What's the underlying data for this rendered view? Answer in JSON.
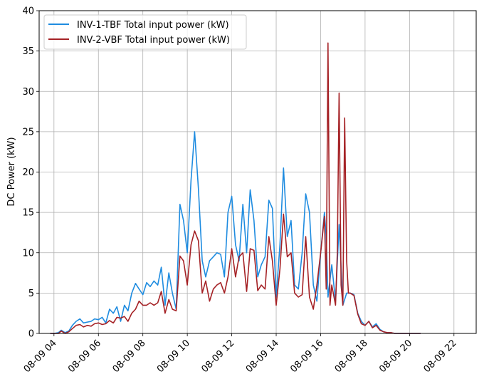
{
  "chart_data": {
    "type": "line",
    "title": "",
    "xlabel": "",
    "ylabel": "DC Power (kW)",
    "ylim": [
      0,
      40
    ],
    "xlim": [
      "08-09 03:20",
      "08-09 23:00"
    ],
    "yticks": [
      0,
      5,
      10,
      15,
      20,
      25,
      30,
      35,
      40
    ],
    "xticks": [
      "08-09 04",
      "08-09 06",
      "08-09 08",
      "08-09 10",
      "08-09 12",
      "08-09 14",
      "08-09 16",
      "08-09 18",
      "08-09 20",
      "08-09 22"
    ],
    "xtick_hours": [
      4,
      6,
      8,
      10,
      12,
      14,
      16,
      18,
      20,
      22
    ],
    "grid": true,
    "legend_position": "top-left",
    "series": [
      {
        "name": "INV-1-TBF Total input power (kW)",
        "color": "#1f8ce0",
        "x_hours": [
          3.83,
          4.0,
          4.2,
          4.33,
          4.5,
          4.67,
          4.83,
          5.0,
          5.17,
          5.33,
          5.5,
          5.67,
          5.83,
          6.0,
          6.17,
          6.33,
          6.5,
          6.67,
          6.83,
          7.0,
          7.17,
          7.33,
          7.5,
          7.67,
          7.83,
          8.0,
          8.17,
          8.33,
          8.5,
          8.67,
          8.83,
          9.0,
          9.17,
          9.33,
          9.5,
          9.67,
          9.83,
          10.0,
          10.17,
          10.33,
          10.5,
          10.67,
          10.83,
          11.0,
          11.17,
          11.33,
          11.5,
          11.67,
          11.83,
          12.0,
          12.17,
          12.33,
          12.5,
          12.67,
          12.83,
          13.0,
          13.17,
          13.33,
          13.5,
          13.67,
          13.83,
          14.0,
          14.17,
          14.33,
          14.5,
          14.67,
          14.83,
          15.0,
          15.17,
          15.33,
          15.5,
          15.67,
          15.83,
          16.0,
          16.17,
          16.25,
          16.33,
          16.5,
          16.67,
          16.83,
          17.0,
          17.17,
          17.33,
          17.5,
          17.67,
          17.83,
          18.0,
          18.17,
          18.33,
          18.5,
          18.67,
          18.83,
          19.0,
          19.17,
          19.33,
          19.5,
          19.67,
          19.83,
          20.0,
          20.17,
          20.33,
          20.5
        ],
        "values": [
          0,
          0,
          0.1,
          0.4,
          0.1,
          0.3,
          1.0,
          1.5,
          1.8,
          1.3,
          1.4,
          1.5,
          1.8,
          1.7,
          2.0,
          1.3,
          3.0,
          2.5,
          3.3,
          1.5,
          3.5,
          2.8,
          5.0,
          6.2,
          5.5,
          4.8,
          6.3,
          5.8,
          6.5,
          6.0,
          8.2,
          3.5,
          7.5,
          5.0,
          3.0,
          16.0,
          14.0,
          10.0,
          19.0,
          25.0,
          18.0,
          9.0,
          7.0,
          9.0,
          9.5,
          10.0,
          9.8,
          7.0,
          15.0,
          17.0,
          11.0,
          9.0,
          16.0,
          10.0,
          17.8,
          14.0,
          7.0,
          8.5,
          9.5,
          16.5,
          15.5,
          4.5,
          11.0,
          20.5,
          12.0,
          14.0,
          6.0,
          5.5,
          10.0,
          17.3,
          15.0,
          6.0,
          4.0,
          10.0,
          15.0,
          12.0,
          4.5,
          8.5,
          4.0,
          13.5,
          3.5,
          5.0,
          5.0,
          4.8,
          2.5,
          1.5,
          1.0,
          1.5,
          0.8,
          1.2,
          0.5,
          0.2,
          0.1,
          0.1,
          0,
          0,
          0,
          0,
          0,
          0,
          0,
          0
        ]
      },
      {
        "name": "INV-2-VBF Total input power (kW)",
        "color": "#a52226",
        "x_hours": [
          3.83,
          4.0,
          4.2,
          4.33,
          4.5,
          4.67,
          4.83,
          5.0,
          5.17,
          5.33,
          5.5,
          5.67,
          5.83,
          6.0,
          6.17,
          6.33,
          6.5,
          6.67,
          6.83,
          7.0,
          7.17,
          7.33,
          7.5,
          7.67,
          7.83,
          8.0,
          8.17,
          8.33,
          8.5,
          8.67,
          8.83,
          9.0,
          9.17,
          9.33,
          9.5,
          9.67,
          9.83,
          10.0,
          10.17,
          10.33,
          10.5,
          10.67,
          10.83,
          11.0,
          11.17,
          11.33,
          11.5,
          11.67,
          11.83,
          12.0,
          12.17,
          12.33,
          12.5,
          12.67,
          12.83,
          13.0,
          13.17,
          13.33,
          13.5,
          13.67,
          13.83,
          14.0,
          14.17,
          14.33,
          14.5,
          14.67,
          14.83,
          15.0,
          15.17,
          15.33,
          15.5,
          15.67,
          15.83,
          16.0,
          16.17,
          16.25,
          16.33,
          16.42,
          16.5,
          16.67,
          16.75,
          16.83,
          16.92,
          17.0,
          17.08,
          17.17,
          17.25,
          17.33,
          17.5,
          17.67,
          17.83,
          18.0,
          18.17,
          18.33,
          18.5,
          18.67,
          18.83,
          19.0,
          19.17,
          19.33,
          19.5,
          19.67,
          19.83,
          20.0,
          20.17,
          20.33,
          20.5
        ],
        "values": [
          0,
          0,
          0,
          0.3,
          0,
          0.2,
          0.6,
          1.0,
          1.1,
          0.8,
          1.0,
          0.9,
          1.2,
          1.3,
          1.1,
          1.2,
          1.6,
          1.3,
          2.0,
          1.9,
          2.1,
          1.5,
          2.5,
          3.0,
          4.0,
          3.5,
          3.5,
          3.8,
          3.5,
          3.8,
          5.2,
          2.5,
          4.2,
          3.0,
          2.8,
          9.6,
          9.0,
          6.0,
          11.0,
          12.7,
          11.5,
          5.0,
          6.5,
          4.0,
          5.5,
          6.0,
          6.3,
          5.0,
          7.0,
          10.5,
          7.0,
          9.5,
          10.0,
          5.2,
          10.5,
          10.3,
          5.3,
          6.0,
          5.5,
          12.0,
          9.0,
          3.5,
          8.0,
          14.8,
          9.5,
          10.0,
          5.0,
          4.5,
          4.8,
          12.0,
          4.5,
          3.0,
          6.0,
          10.0,
          14.5,
          5.5,
          36.0,
          3.5,
          6.0,
          3.5,
          10.0,
          29.8,
          6.0,
          3.5,
          26.7,
          9.0,
          5.0,
          5.0,
          4.7,
          2.4,
          1.2,
          1.0,
          1.5,
          0.7,
          1.0,
          0.4,
          0.2,
          0.1,
          0.1,
          0,
          0,
          0,
          0,
          0,
          0,
          0,
          0
        ]
      }
    ]
  }
}
